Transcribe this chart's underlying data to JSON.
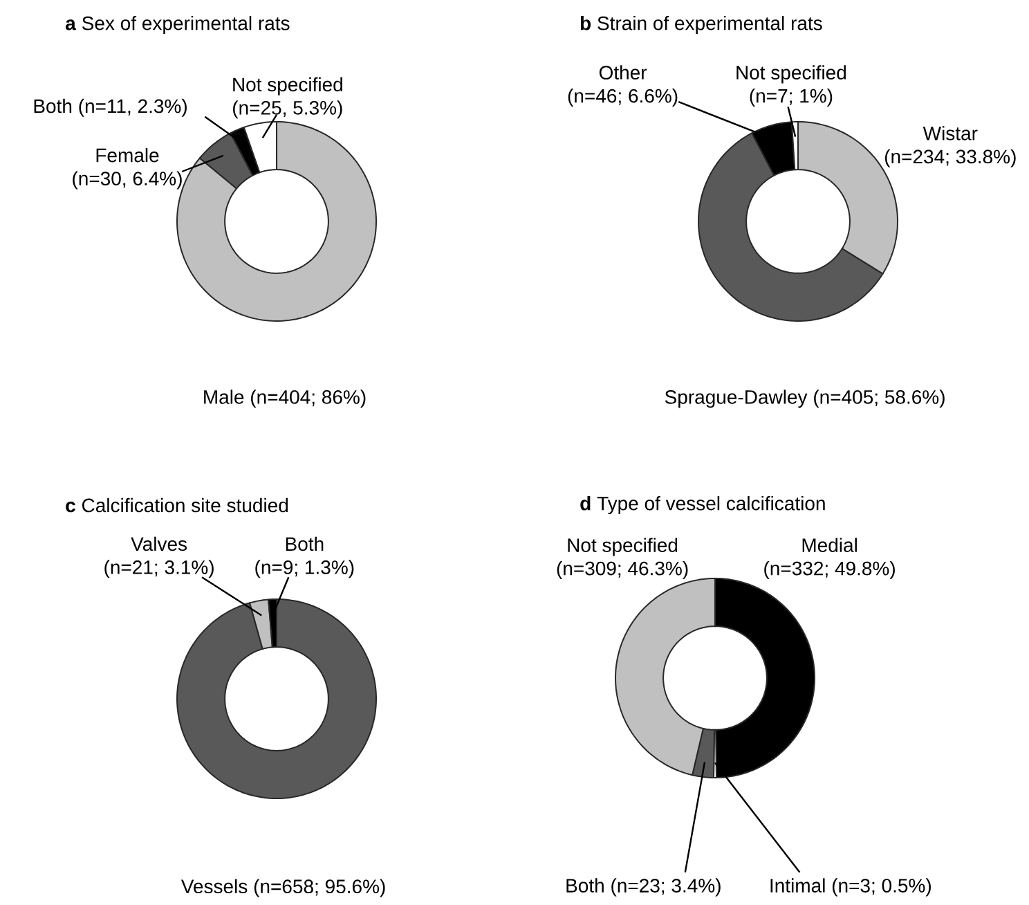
{
  "chart_data": [
    {
      "type": "donut",
      "title": "**a** Sex of experimental rats",
      "categories": [
        "Male",
        "Female",
        "Both",
        "Not specified"
      ],
      "values": [
        404,
        30,
        11,
        25
      ],
      "value_labels": [
        "(n=404; 86%)",
        "(n=30, 6.4%)",
        "(n=11, 2.3%)",
        "(n=25, 5.3%)"
      ],
      "colors": [
        "#c0c0c0",
        "#595959",
        "#000000",
        "#ffffff"
      ]
    },
    {
      "type": "donut",
      "title": "**b** Strain of experimental rats",
      "categories": [
        "Wistar",
        "Sprague-Dawley",
        "Other",
        "Not specified"
      ],
      "values": [
        234,
        405,
        46,
        7
      ],
      "value_labels": [
        "(n=234; 33.8%)",
        "(n=405; 58.6%)",
        "(n=46; 6.6%)",
        "(n=7; 1%)"
      ],
      "colors": [
        "#c0c0c0",
        "#595959",
        "#000000",
        "#ffffff"
      ]
    },
    {
      "type": "donut",
      "title": "**c** Calcification site studied",
      "categories": [
        "Vessels",
        "Valves",
        "Both"
      ],
      "values": [
        658,
        21,
        9
      ],
      "value_labels": [
        "(n=658; 95.6%)",
        "(n=21; 3.1%)",
        "(n=9; 1.3%)"
      ],
      "colors": [
        "#595959",
        "#c0c0c0",
        "#000000"
      ]
    },
    {
      "type": "donut",
      "title": "**d** Type of vessel calcification",
      "categories": [
        "Medial",
        "Intimal",
        "Both",
        "Not specified"
      ],
      "values": [
        332,
        3,
        23,
        309
      ],
      "value_labels": [
        "(n=332; 49.8%)",
        "(n=3; 0.5%)",
        "(n=23; 3.4%)",
        "(n=309; 46.3%)"
      ],
      "colors": [
        "#000000",
        "#ffffff",
        "#595959",
        "#c0c0c0"
      ]
    }
  ]
}
